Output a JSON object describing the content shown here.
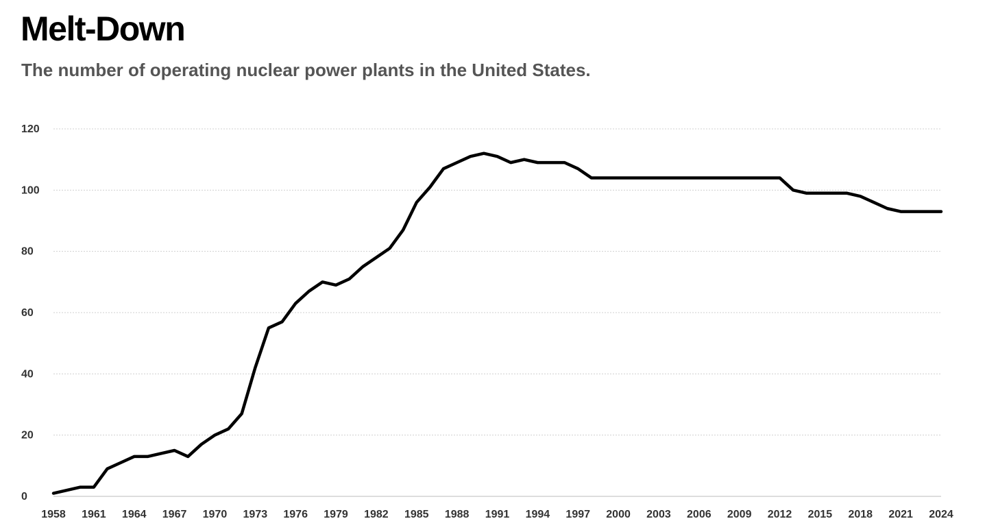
{
  "chart_data": {
    "type": "line",
    "title": "Melt-Down",
    "subtitle": "The number of operating nuclear power plants in the United States.",
    "xlabel": "",
    "ylabel": "",
    "ylim": [
      0,
      120
    ],
    "xlim": [
      1958,
      2024
    ],
    "grid": true,
    "line_color": "#000000",
    "y_ticks": [
      0,
      20,
      40,
      60,
      80,
      100,
      120
    ],
    "x_ticks": [
      1958,
      1961,
      1964,
      1967,
      1970,
      1973,
      1976,
      1979,
      1982,
      1985,
      1988,
      1991,
      1994,
      1997,
      2000,
      2003,
      2006,
      2009,
      2012,
      2015,
      2018,
      2021,
      2024
    ],
    "x": [
      1958,
      1959,
      1960,
      1961,
      1962,
      1963,
      1964,
      1965,
      1966,
      1967,
      1968,
      1969,
      1970,
      1971,
      1972,
      1973,
      1974,
      1975,
      1976,
      1977,
      1978,
      1979,
      1980,
      1981,
      1982,
      1983,
      1984,
      1985,
      1986,
      1987,
      1988,
      1989,
      1990,
      1991,
      1992,
      1993,
      1994,
      1995,
      1996,
      1997,
      1998,
      1999,
      2000,
      2001,
      2002,
      2003,
      2004,
      2005,
      2006,
      2007,
      2008,
      2009,
      2010,
      2011,
      2012,
      2013,
      2014,
      2015,
      2016,
      2017,
      2018,
      2019,
      2020,
      2021,
      2022,
      2023,
      2024
    ],
    "series": [
      {
        "values": [
          1,
          2,
          3,
          3,
          9,
          11,
          13,
          13,
          14,
          15,
          13,
          17,
          20,
          22,
          27,
          42,
          55,
          57,
          63,
          67,
          70,
          69,
          71,
          75,
          78,
          81,
          87,
          96,
          101,
          107,
          109,
          111,
          112,
          111,
          109,
          110,
          109,
          109,
          109,
          107,
          104,
          104,
          104,
          104,
          104,
          104,
          104,
          104,
          104,
          104,
          104,
          104,
          104,
          104,
          104,
          100,
          99,
          99,
          99,
          99,
          98,
          96,
          94,
          93,
          93,
          93,
          93
        ]
      }
    ]
  }
}
